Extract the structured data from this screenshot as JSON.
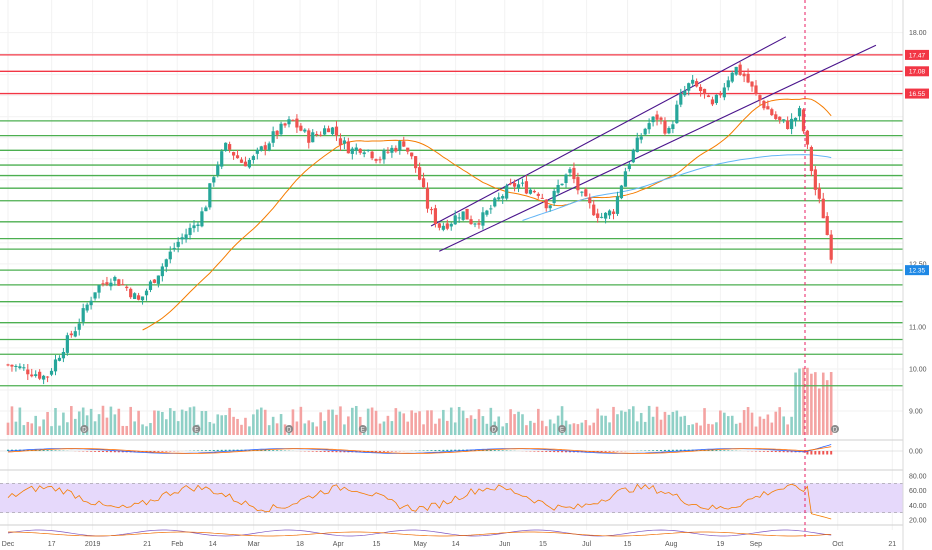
{
  "chart_data": {
    "type": "candlestick",
    "price_axis": {
      "ticks": [
        18.0,
        12.5,
        11.0,
        10.0,
        9.0
      ],
      "tick_labels": [
        "18.00",
        "12.50",
        "11.00",
        "10.00",
        "9.00"
      ],
      "range": [
        8.5,
        18.3
      ]
    },
    "time_axis": {
      "labels": [
        "Dec",
        "17",
        "2019",
        "21",
        "Feb",
        "14",
        "Mar",
        "18",
        "Apr",
        "15",
        "May",
        "14",
        "Jun",
        "15",
        "Jul",
        "15",
        "Aug",
        "19",
        "Sep",
        "Oct",
        "21"
      ],
      "label_positions_days": [
        0,
        16,
        31,
        51,
        62,
        75,
        90,
        107,
        121,
        135,
        151,
        164,
        182,
        196,
        212,
        227,
        243,
        261,
        274,
        304,
        324
      ]
    },
    "last_price": "12.35",
    "resistance_lines": [
      17.47,
      17.08,
      16.55
    ],
    "support_lines": [
      15.9,
      15.55,
      15.2,
      14.85,
      14.6,
      14.3,
      14.0,
      13.5,
      13.1,
      12.85,
      12.35,
      12.0,
      11.6,
      11.1,
      10.7,
      10.35,
      9.6
    ],
    "indicator_values": [
      "0.00",
      "80.00",
      "60.00",
      "40.00",
      "20.00"
    ],
    "event_markers": [
      "D",
      "E",
      "D",
      "E",
      "D",
      "E",
      "D"
    ],
    "colors": {
      "up": "#26a69a",
      "down": "#ef5350",
      "resistance": "#f23645",
      "support": "#4caf50",
      "channel": "#4a148c",
      "ma_fast": "#f57c00",
      "ma_slow": "#64b5f6",
      "rsi_line": "#f57c00",
      "rsi_band": "#e6d9fb"
    }
  }
}
